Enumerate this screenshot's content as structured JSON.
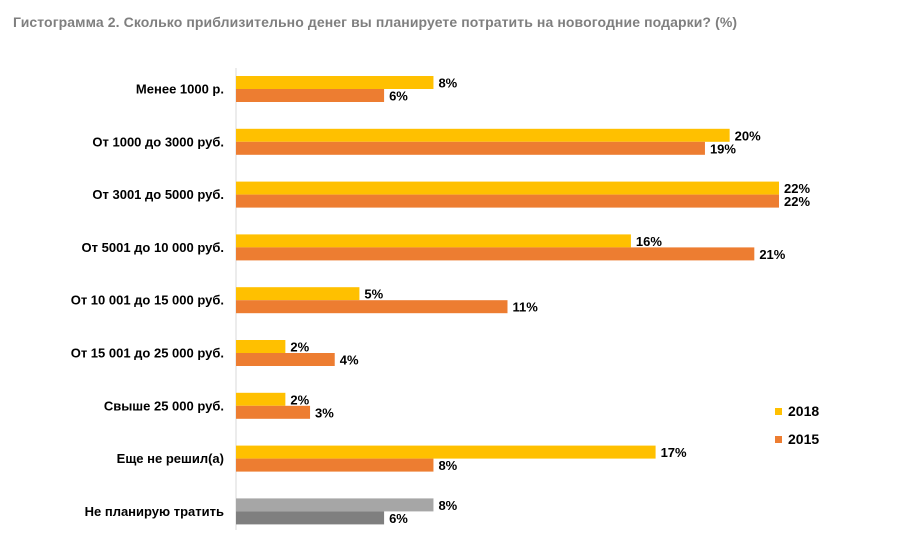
{
  "chart_data": {
    "type": "bar",
    "orientation": "horizontal",
    "title": "Гистограмма 2. Сколько приблизительно денег вы планируете потратить на новогодние подарки? (%)",
    "xlabel": "",
    "ylabel": "",
    "xlim": [
      0,
      22
    ],
    "grid": false,
    "legend_position": "right",
    "categories": [
      "Менее 1000 р.",
      "От 1000 до 3000 руб.",
      "От 3001 до 5000 руб.",
      "От 5001 до 10 000 руб.",
      "От 10 001 до 15 000 руб.",
      "От 15 001 до 25 000 руб.",
      "Свыше 25 000 руб.",
      "Еще не решил(а)",
      "Не планирую тратить"
    ],
    "series": [
      {
        "name": "2018",
        "color": "#FFC000",
        "values": [
          8,
          20,
          22,
          16,
          5,
          2,
          2,
          17,
          8
        ],
        "labels": [
          "8%",
          "20%",
          "22%",
          "16%",
          "5%",
          "2%",
          "2%",
          "17%",
          "8%"
        ]
      },
      {
        "name": "2015",
        "color": "#ED7D31",
        "values": [
          6,
          19,
          22,
          21,
          11,
          4,
          3,
          8,
          6
        ],
        "labels": [
          "6%",
          "19%",
          "22%",
          "21%",
          "11%",
          "4%",
          "3%",
          "8%",
          "6%"
        ]
      }
    ],
    "highlight_category_colors": {
      "Не планирую тратить": [
        "#A6A6A6",
        "#7F7F7F"
      ]
    }
  }
}
